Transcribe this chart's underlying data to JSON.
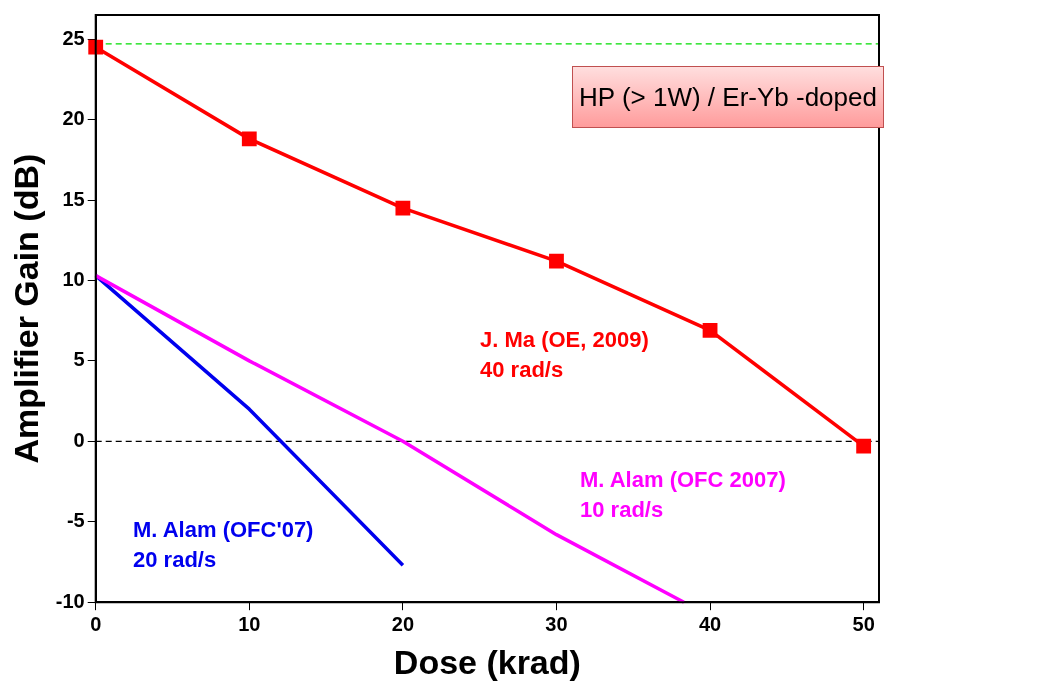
{
  "chart_data": {
    "type": "line",
    "xlabel": "Dose (krad)",
    "ylabel": "Amplifier Gain (dB)",
    "xlim": [
      0,
      51
    ],
    "xticks": [
      0,
      10,
      20,
      30,
      40,
      50
    ],
    "ylim": [
      -10,
      26.5
    ],
    "yticks": [
      -10,
      -5,
      0,
      5,
      10,
      15,
      20,
      25
    ],
    "grid": false,
    "legend": false,
    "line_style": "solid",
    "series": [
      {
        "name": "J. Ma (OE, 2009)\n40 rad/s",
        "color": "#ff0000",
        "marker": "square",
        "x": [
          0,
          10,
          20,
          30,
          40,
          50
        ],
        "values": [
          24.5,
          18.8,
          14.5,
          11.2,
          6.9,
          -0.3
        ]
      },
      {
        "name": "M. Alam (OFC 2007)\n10 rad/s",
        "color": "#ff00ff",
        "marker": "none",
        "x": [
          0,
          10,
          20,
          30,
          38.3
        ],
        "values": [
          10.3,
          5,
          0,
          -5.8,
          -10
        ]
      },
      {
        "name": "M. Alam (OFC'07)\n20 rad/s",
        "color": "#0000ee",
        "marker": "none",
        "x": [
          0,
          10,
          20
        ],
        "values": [
          10.3,
          2,
          -7.7
        ]
      }
    ],
    "ref_lines": [
      {
        "axis": "y",
        "value": 24.7,
        "color": "#00dd00",
        "line_style": "dashed"
      },
      {
        "axis": "y",
        "value": 0,
        "color": "#000000",
        "line_style": "dashed"
      }
    ],
    "annotations": [
      "HP (> 1W) / Er-Yb -doped"
    ]
  }
}
